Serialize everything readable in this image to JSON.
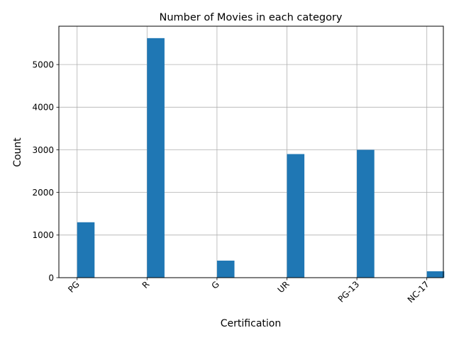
{
  "chart_data": {
    "type": "bar",
    "title": "Number of Movies in each category",
    "xlabel": "Certification",
    "ylabel": "Count",
    "categories": [
      "PG",
      "R",
      "G",
      "UR",
      "PG-13",
      "NC-17"
    ],
    "values": [
      1300,
      5620,
      400,
      2900,
      3000,
      150
    ],
    "ylim": [
      0,
      5900
    ],
    "yticks": [
      0,
      1000,
      2000,
      3000,
      4000,
      5000
    ],
    "grid": true,
    "bar_color": "#1f77b4"
  }
}
